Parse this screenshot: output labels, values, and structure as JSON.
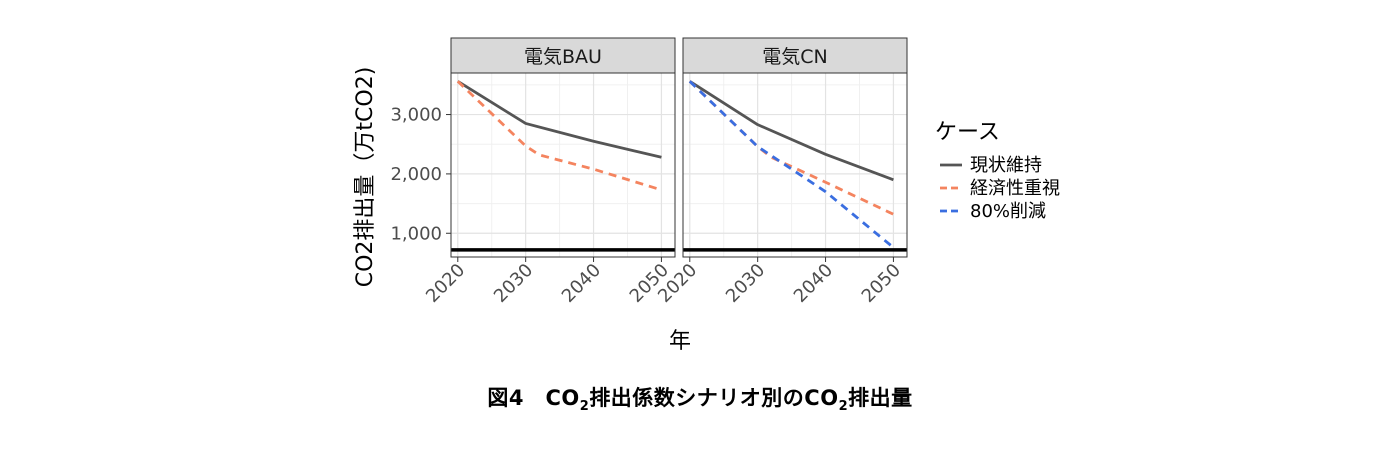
{
  "caption": {
    "prefix": "図4　CO",
    "sub1": "2",
    "mid": "排出係数シナリオ別のCO",
    "sub2": "2",
    "suffix": "排出量"
  },
  "chart_data": {
    "type": "line",
    "facets": [
      "電気BAU",
      "電気CN"
    ],
    "xlabel": "年",
    "ylabel": "CO2排出量（万tCO2)",
    "x_ticks": [
      2020,
      2030,
      2040,
      2050
    ],
    "y_ticks": [
      1000,
      2000,
      3000
    ],
    "y_tick_labels": [
      "1,000",
      "2,000",
      "3,000"
    ],
    "xlim": [
      2019,
      2052
    ],
    "ylim": [
      600,
      3700
    ],
    "reference_line": 720,
    "grid": true,
    "legend": {
      "title": "ケース",
      "position": "right"
    },
    "series": [
      {
        "name": "現状維持",
        "color": "#555555",
        "dash": "solid",
        "facet": "電気BAU",
        "x": [
          2020,
          2030,
          2040,
          2050
        ],
        "y": [
          3560,
          2850,
          2550,
          2280
        ]
      },
      {
        "name": "経済性重視",
        "color": "#f4845f",
        "dash": "dashed",
        "facet": "電気BAU",
        "x": [
          2020,
          2030,
          2032,
          2040,
          2050
        ],
        "y": [
          3560,
          2470,
          2320,
          2080,
          1730
        ]
      },
      {
        "name": "現状維持",
        "color": "#555555",
        "dash": "solid",
        "facet": "電気CN",
        "x": [
          2020,
          2030,
          2040,
          2050
        ],
        "y": [
          3560,
          2830,
          2330,
          1900
        ]
      },
      {
        "name": "経済性重視",
        "color": "#f4845f",
        "dash": "dashed",
        "facet": "電気CN",
        "x": [
          2020,
          2030,
          2032,
          2040,
          2050
        ],
        "y": [
          3560,
          2460,
          2280,
          1860,
          1320
        ]
      },
      {
        "name": "80%削減",
        "color": "#3a6ee0",
        "dash": "dashed",
        "facet": "電気CN",
        "x": [
          2020,
          2030,
          2040,
          2050
        ],
        "y": [
          3560,
          2460,
          1700,
          760
        ]
      }
    ]
  },
  "legend_items": [
    {
      "name": "現状維持",
      "color": "#555555",
      "dash": "solid"
    },
    {
      "name": "経済性重視",
      "color": "#f4845f",
      "dash": "dashed"
    },
    {
      "name": "80%削減",
      "color": "#3a6ee0",
      "dash": "dashed"
    }
  ]
}
